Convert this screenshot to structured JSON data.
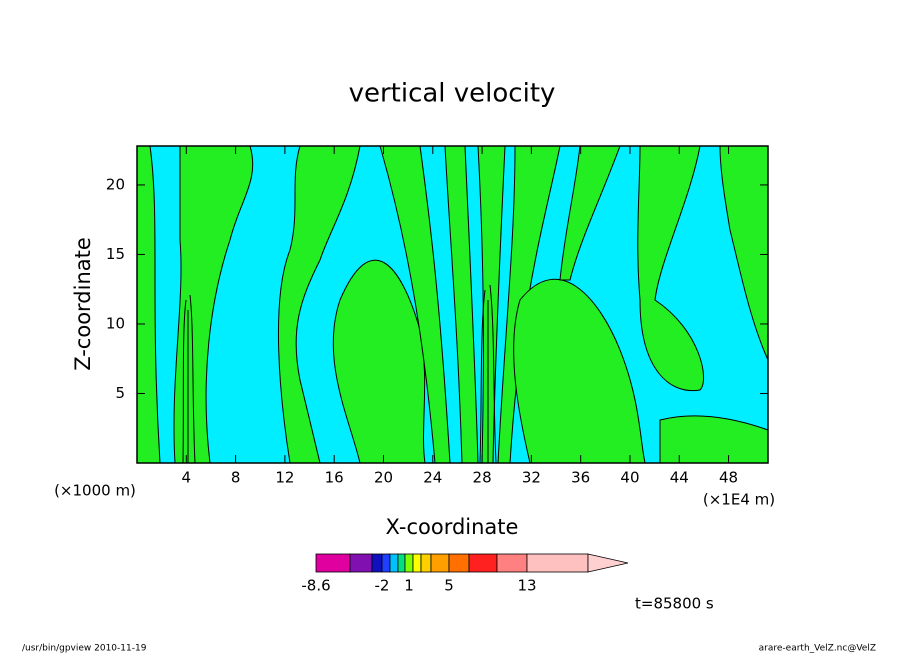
{
  "chart_data": {
    "type": "contour",
    "title": "vertical velocity",
    "x_label": "X-coordinate",
    "y_label": "Z-coordinate",
    "x_unit_label": "(×1000 m)",
    "x_scale_label": "(×1E4 m)",
    "xlim": [
      0,
      51.2
    ],
    "ylim": [
      0,
      22.8
    ],
    "xticks": [
      4,
      8,
      12,
      16,
      20,
      24,
      28,
      32,
      36,
      40,
      44,
      48
    ],
    "yticks": [
      5,
      10,
      15,
      20
    ],
    "colorbar": {
      "colors": [
        "#e000a0",
        "#8010b0",
        "#1010c0",
        "#2040ff",
        "#00c0ff",
        "#00e080",
        "#80ff00",
        "#ffff00",
        "#ffd000",
        "#ffa000",
        "#ff7000",
        "#ff2020",
        "#ff8080",
        "#ffc0c0",
        "#ffd0d0"
      ],
      "ticks": [
        -8.6,
        -2,
        1,
        5,
        13
      ]
    },
    "time_label": "t=85800 s",
    "footer_left": "/usr/bin/gpview  2010-11-19",
    "footer_right": "arare-earth_VelZ.nc@VelZ"
  }
}
